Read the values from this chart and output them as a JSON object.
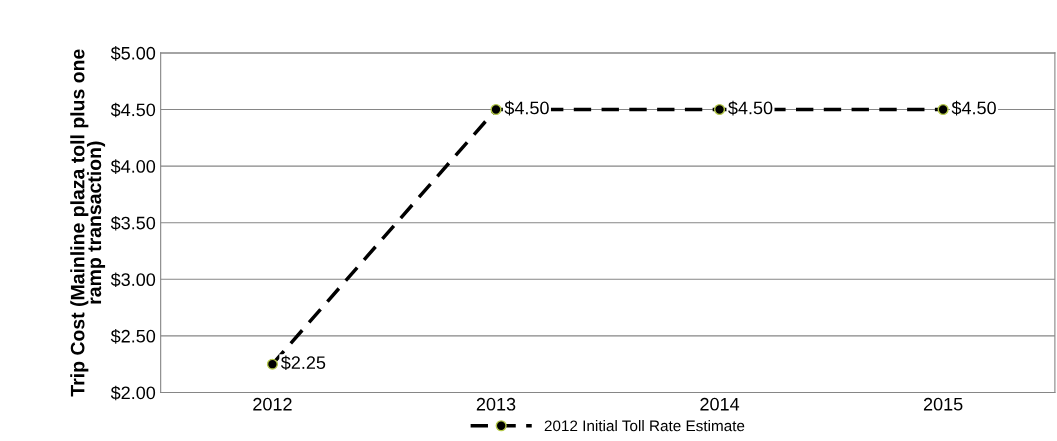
{
  "chart_data": {
    "type": "line",
    "ylabel": "Trip Cost (Mainline plaza toll plus one\nramp transaction)",
    "categories": [
      "2012",
      "2013",
      "2014",
      "2015"
    ],
    "series": [
      {
        "name": "2012 Initial Toll Rate Estimate",
        "color": "#000000",
        "values": [
          2.25,
          4.5,
          4.5,
          4.5
        ],
        "value_labels": [
          "$2.25",
          "$4.50",
          "$4.50",
          "$4.50"
        ]
      }
    ],
    "ylim": [
      2,
      5
    ],
    "yticks": [
      {
        "value": 2,
        "label": "$2.00"
      },
      {
        "value": 2.5,
        "label": "$2.50"
      },
      {
        "value": 3,
        "label": "$3.00"
      },
      {
        "value": 3.5,
        "label": "$3.50"
      },
      {
        "value": 4,
        "label": "$4.00"
      },
      {
        "value": 4.5,
        "label": "$4.50"
      },
      {
        "value": 5,
        "label": "$5.00"
      }
    ],
    "grid": "y",
    "legend": "bottom",
    "marker": "circle",
    "line_style": "dashed"
  }
}
